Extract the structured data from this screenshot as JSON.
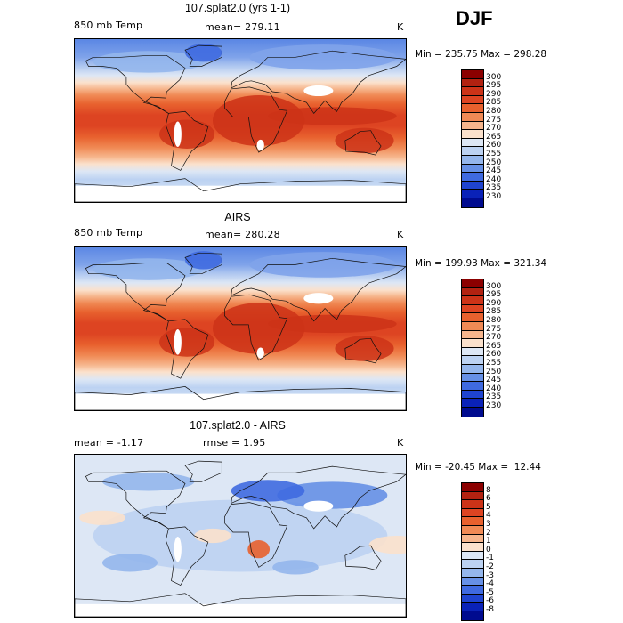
{
  "season": "DJF",
  "panels": [
    {
      "title": "107.splat2.0 (yrs 1-1)",
      "left_label": "850 mb Temp",
      "center_label": "mean= 279.11",
      "unit": "K",
      "minmax": "Min = 235.75 Max = 298.28",
      "palette": "warm",
      "colorbar": {
        "labels": [
          "300",
          "295",
          "290",
          "285",
          "280",
          "275",
          "270",
          "265",
          "260",
          "255",
          "250",
          "245",
          "240",
          "235",
          "230"
        ],
        "colors": [
          "#8b0000",
          "#b22211",
          "#cc3318",
          "#dd4422",
          "#e8612e",
          "#f08a55",
          "#f6b58c",
          "#fbe1cc",
          "#dde7f5",
          "#bcd2f2",
          "#94b6ec",
          "#6690e6",
          "#3f6ae0",
          "#1f44d0",
          "#0a22b8",
          "#000b8f"
        ]
      }
    },
    {
      "title": "AIRS",
      "left_label": "850 mb Temp",
      "center_label": "mean= 280.28",
      "unit": "K",
      "minmax": "Min = 199.93 Max = 321.34",
      "palette": "warm",
      "colorbar": {
        "labels": [
          "300",
          "295",
          "290",
          "285",
          "280",
          "275",
          "270",
          "265",
          "260",
          "255",
          "250",
          "245",
          "240",
          "235",
          "230"
        ],
        "colors": [
          "#8b0000",
          "#b22211",
          "#cc3318",
          "#dd4422",
          "#e8612e",
          "#f08a55",
          "#f6b58c",
          "#fbe1cc",
          "#dde7f5",
          "#bcd2f2",
          "#94b6ec",
          "#6690e6",
          "#3f6ae0",
          "#1f44d0",
          "#0a22b8",
          "#000b8f"
        ]
      }
    },
    {
      "title": "107.splat2.0 - AIRS",
      "left_label": "mean =   -1.17",
      "center_label": "rmse =    1.95",
      "unit": "K",
      "minmax": "Min = -20.45 Max =  12.44",
      "palette": "diff",
      "colorbar": {
        "labels": [
          "8",
          "6",
          "5",
          "4",
          "3",
          "2",
          "1",
          "0",
          "-1",
          "-2",
          "-3",
          "-4",
          "-5",
          "-6",
          "-8"
        ],
        "colors": [
          "#8b0000",
          "#b22211",
          "#cc3318",
          "#dd4422",
          "#e8612e",
          "#f08a55",
          "#f6b58c",
          "#fbe1cc",
          "#dde7f5",
          "#bcd2f2",
          "#94b6ec",
          "#6690e6",
          "#3f6ae0",
          "#1f44d0",
          "#0a22b8",
          "#000b8f"
        ]
      }
    }
  ]
}
